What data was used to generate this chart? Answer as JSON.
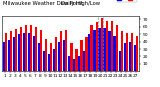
{
  "title_left": "Milwaukee Weather Dew Point",
  "title_right": "Daily High/Low",
  "background_color": "#ffffff",
  "plot_bg_color": "#ffffff",
  "bar_color_high": "#ff0000",
  "bar_color_low": "#0000ff",
  "num_days": 27,
  "high_values": [
    52,
    55,
    57,
    60,
    62,
    62,
    60,
    56,
    44,
    38,
    46,
    54,
    56,
    38,
    30,
    42,
    46,
    62,
    66,
    72,
    68,
    68,
    62,
    55,
    52,
    52,
    48
  ],
  "low_values": [
    40,
    42,
    46,
    50,
    52,
    52,
    48,
    38,
    28,
    24,
    30,
    40,
    42,
    20,
    16,
    20,
    28,
    50,
    56,
    58,
    58,
    54,
    48,
    28,
    38,
    40,
    36
  ],
  "ylim": [
    0,
    75
  ],
  "yticks": [
    10,
    20,
    30,
    40,
    50,
    60,
    70
  ],
  "tick_fontsize": 3.2,
  "bar_width": 0.42,
  "dashed_line_x": [
    19.5,
    20.5
  ],
  "x_labels": [
    "1",
    "2",
    "3",
    "4",
    "5",
    "6",
    "7",
    "8",
    "9",
    "10",
    "11",
    "12",
    "13",
    "14",
    "15",
    "16",
    "17",
    "18",
    "19",
    "20",
    "21",
    "22",
    "23",
    "24",
    "25",
    "26",
    "27"
  ]
}
